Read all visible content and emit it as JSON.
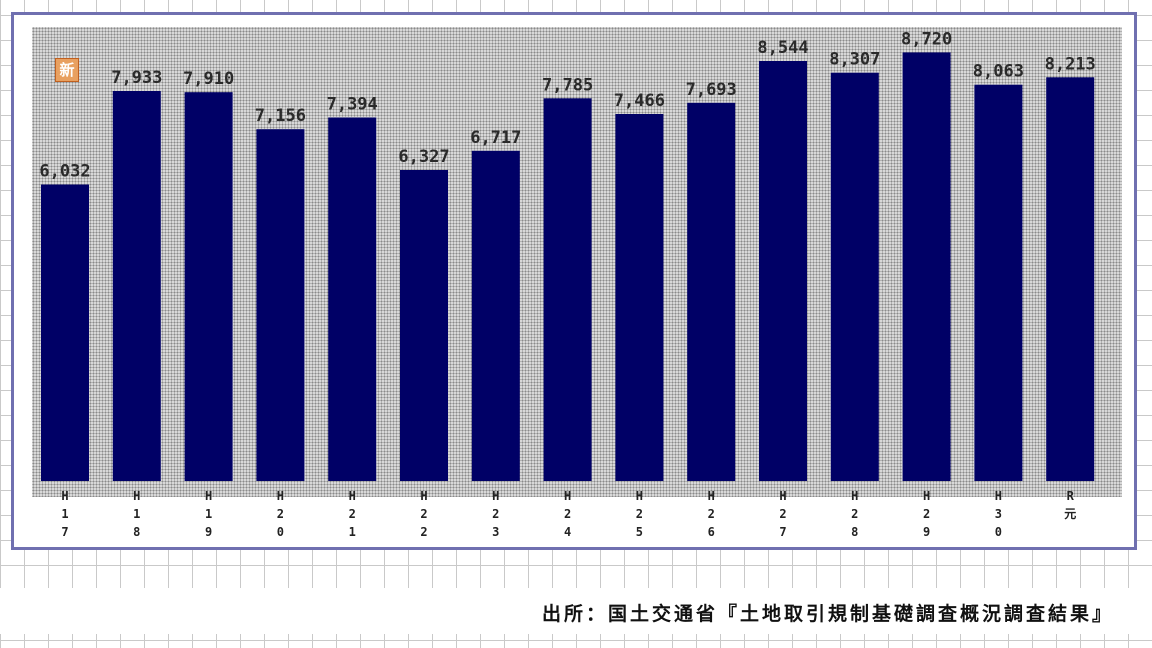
{
  "badge": {
    "text": "新"
  },
  "source": {
    "text": "出所：国土交通省『土地取引規制基礎調査概況調査結果』"
  },
  "colors": {
    "bar": "#000066",
    "frame": "#7070b0",
    "badge": "#e8a060"
  },
  "chart_data": {
    "type": "bar",
    "categories": [
      "H17",
      "H18",
      "H19",
      "H20",
      "H21",
      "H22",
      "H23",
      "H24",
      "H25",
      "H26",
      "H27",
      "H28",
      "H29",
      "H30",
      "R元"
    ],
    "tick_labels": [
      [
        "H",
        "1",
        "7"
      ],
      [
        "H",
        "1",
        "8"
      ],
      [
        "H",
        "1",
        "9"
      ],
      [
        "H",
        "2",
        "0"
      ],
      [
        "H",
        "2",
        "1"
      ],
      [
        "H",
        "2",
        "2"
      ],
      [
        "H",
        "2",
        "3"
      ],
      [
        "H",
        "2",
        "4"
      ],
      [
        "H",
        "2",
        "5"
      ],
      [
        "H",
        "2",
        "6"
      ],
      [
        "H",
        "2",
        "7"
      ],
      [
        "H",
        "2",
        "8"
      ],
      [
        "H",
        "2",
        "9"
      ],
      [
        "H",
        "3",
        "0"
      ],
      [
        "R",
        "元"
      ]
    ],
    "values": [
      6032,
      7933,
      7910,
      7156,
      7394,
      6327,
      6717,
      7785,
      7466,
      7693,
      8544,
      8307,
      8720,
      8063,
      8213
    ],
    "data_labels": [
      "6,032",
      "7,933",
      "7,910",
      "7,156",
      "7,394",
      "6,327",
      "6,717",
      "7,785",
      "7,466",
      "7,693",
      "8,544",
      "8,307",
      "8,720",
      "8,063",
      "8,213"
    ],
    "title": "",
    "xlabel": "",
    "ylabel": "",
    "ylim": [
      0,
      9480
    ],
    "grid": false,
    "legend": "none"
  }
}
